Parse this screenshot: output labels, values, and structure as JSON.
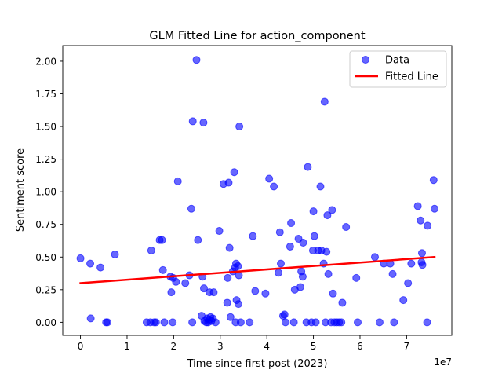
{
  "chart_data": {
    "type": "scatter",
    "title": "GLM Fitted Line for action_component",
    "xlabel": "Time since first post (2023)",
    "ylabel": "Sentiment score",
    "x_offset_label": "1e7",
    "x_ticks": [
      0,
      1,
      2,
      3,
      4,
      5,
      6,
      7
    ],
    "y_ticks": [
      "0.00",
      "0.25",
      "0.50",
      "0.75",
      "1.00",
      "1.25",
      "1.50",
      "1.75",
      "2.00"
    ],
    "xlim": [
      -0.38,
      7.97
    ],
    "ylim": [
      -0.1,
      2.12
    ],
    "grid": false,
    "legend_position": "top-right",
    "colors": {
      "data": "#0000ff",
      "fitted": "#ff0000"
    },
    "series": [
      {
        "name": "Data",
        "kind": "scatter",
        "points": [
          [
            0.0,
            0.49
          ],
          [
            0.21,
            0.45
          ],
          [
            0.22,
            0.03
          ],
          [
            0.43,
            0.42
          ],
          [
            0.55,
            0.0
          ],
          [
            0.58,
            0.0
          ],
          [
            0.74,
            0.52
          ],
          [
            1.42,
            0.0
          ],
          [
            1.5,
            0.0
          ],
          [
            1.52,
            0.55
          ],
          [
            1.58,
            0.0
          ],
          [
            1.62,
            0.0
          ],
          [
            1.7,
            0.63
          ],
          [
            1.75,
            0.63
          ],
          [
            1.77,
            0.4
          ],
          [
            1.8,
            0.0
          ],
          [
            1.93,
            0.35
          ],
          [
            1.95,
            0.23
          ],
          [
            1.98,
            0.0
          ],
          [
            1.99,
            0.34
          ],
          [
            2.05,
            0.31
          ],
          [
            2.09,
            1.08
          ],
          [
            2.25,
            0.3
          ],
          [
            2.34,
            0.36
          ],
          [
            2.38,
            0.87
          ],
          [
            2.4,
            0.0
          ],
          [
            2.41,
            1.54
          ],
          [
            2.49,
            2.01
          ],
          [
            2.52,
            0.63
          ],
          [
            2.6,
            0.05
          ],
          [
            2.62,
            0.35
          ],
          [
            2.64,
            1.53
          ],
          [
            2.65,
            0.26
          ],
          [
            2.66,
            0.01
          ],
          [
            2.7,
            0.0
          ],
          [
            2.72,
            0.03
          ],
          [
            2.74,
            0.0
          ],
          [
            2.76,
            0.02
          ],
          [
            2.77,
            0.23
          ],
          [
            2.79,
            0.04
          ],
          [
            2.81,
            0.01
          ],
          [
            2.84,
            0.03
          ],
          [
            2.86,
            0.23
          ],
          [
            2.9,
            0.0
          ],
          [
            2.98,
            0.7
          ],
          [
            3.07,
            1.06
          ],
          [
            3.15,
            0.15
          ],
          [
            3.16,
            0.34
          ],
          [
            3.18,
            1.07
          ],
          [
            3.2,
            0.57
          ],
          [
            3.22,
            0.04
          ],
          [
            3.27,
            0.39
          ],
          [
            3.3,
            1.15
          ],
          [
            3.32,
            0.42
          ],
          [
            3.33,
            0.0
          ],
          [
            3.34,
            0.45
          ],
          [
            3.35,
            0.17
          ],
          [
            3.38,
            0.43
          ],
          [
            3.39,
            0.14
          ],
          [
            3.4,
            0.36
          ],
          [
            3.41,
            1.5
          ],
          [
            3.44,
            0.0
          ],
          [
            3.63,
            0.0
          ],
          [
            3.7,
            0.66
          ],
          [
            3.75,
            0.24
          ],
          [
            3.97,
            0.22
          ],
          [
            4.05,
            1.1
          ],
          [
            4.15,
            1.04
          ],
          [
            4.25,
            0.38
          ],
          [
            4.28,
            0.69
          ],
          [
            4.3,
            0.45
          ],
          [
            4.35,
            0.05
          ],
          [
            4.38,
            0.06
          ],
          [
            4.4,
            0.0
          ],
          [
            4.5,
            0.58
          ],
          [
            4.52,
            0.76
          ],
          [
            4.58,
            0.0
          ],
          [
            4.6,
            0.25
          ],
          [
            4.68,
            0.64
          ],
          [
            4.72,
            0.27
          ],
          [
            4.74,
            0.39
          ],
          [
            4.77,
            0.35
          ],
          [
            4.78,
            0.61
          ],
          [
            4.85,
            0.0
          ],
          [
            4.88,
            1.19
          ],
          [
            4.96,
            0.0
          ],
          [
            4.99,
            0.55
          ],
          [
            5.0,
            0.85
          ],
          [
            5.02,
            0.66
          ],
          [
            5.05,
            0.0
          ],
          [
            5.1,
            0.55
          ],
          [
            5.15,
            1.04
          ],
          [
            5.17,
            0.55
          ],
          [
            5.22,
            0.45
          ],
          [
            5.24,
            1.69
          ],
          [
            5.26,
            0.0
          ],
          [
            5.28,
            0.54
          ],
          [
            5.3,
            0.82
          ],
          [
            5.32,
            0.37
          ],
          [
            5.38,
            0.0
          ],
          [
            5.4,
            0.86
          ],
          [
            5.42,
            0.22
          ],
          [
            5.45,
            0.0
          ],
          [
            5.5,
            0.0
          ],
          [
            5.55,
            0.0
          ],
          [
            5.6,
            0.0
          ],
          [
            5.62,
            0.15
          ],
          [
            5.7,
            0.73
          ],
          [
            5.92,
            0.34
          ],
          [
            5.95,
            0.0
          ],
          [
            6.32,
            0.5
          ],
          [
            6.42,
            0.0
          ],
          [
            6.51,
            0.45
          ],
          [
            6.65,
            0.45
          ],
          [
            6.7,
            0.37
          ],
          [
            6.73,
            0.0
          ],
          [
            6.93,
            0.17
          ],
          [
            7.03,
            0.3
          ],
          [
            7.1,
            0.45
          ],
          [
            7.24,
            0.89
          ],
          [
            7.3,
            0.78
          ],
          [
            7.32,
            0.46
          ],
          [
            7.33,
            0.53
          ],
          [
            7.34,
            0.44
          ],
          [
            7.44,
            0.0
          ],
          [
            7.45,
            0.74
          ],
          [
            7.58,
            1.09
          ],
          [
            7.6,
            0.87
          ]
        ]
      },
      {
        "name": "Fitted Line",
        "kind": "line",
        "x": [
          0.0,
          7.6
        ],
        "y": [
          0.3,
          0.5
        ]
      }
    ]
  }
}
